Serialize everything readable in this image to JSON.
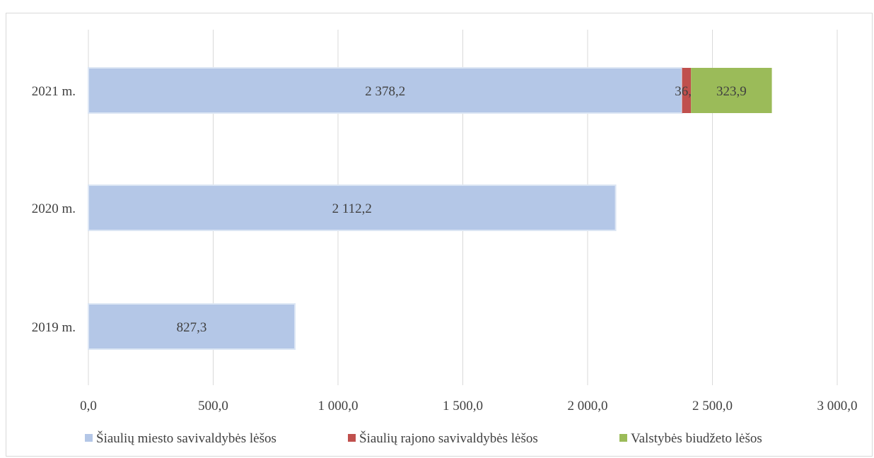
{
  "chart_data": {
    "type": "bar",
    "orientation": "horizontal",
    "stacked": true,
    "categories": [
      "2019 m.",
      "2020 m.",
      "2021 m."
    ],
    "series": [
      {
        "name": "Šiaulių miesto savivaldybės lėšos",
        "color": "#b4c7e7",
        "values": [
          827.3,
          2112.2,
          2378.2
        ],
        "labels": [
          "827,3",
          "2 112,2",
          "2 378,2"
        ]
      },
      {
        "name": "Šiaulių rajono savivaldybės lėšos",
        "color": "#c0504d",
        "values": [
          0,
          0,
          36.0
        ],
        "labels": [
          "",
          "",
          "36,0"
        ]
      },
      {
        "name": "Valstybės biudžeto lėšos",
        "color": "#9bbb59",
        "values": [
          0,
          0,
          323.9
        ],
        "labels": [
          "",
          "",
          "323,9"
        ]
      }
    ],
    "xlim": [
      0,
      3000
    ],
    "xticks": [
      0,
      500,
      1000,
      1500,
      2000,
      2500,
      3000
    ],
    "xtick_labels": [
      "0,0",
      "500,0",
      "1 000,0",
      "1 500,0",
      "2 000,0",
      "2 500,0",
      "3 000,0"
    ],
    "grid": true,
    "legend_position": "bottom",
    "title": "",
    "xlabel": "",
    "ylabel": ""
  }
}
